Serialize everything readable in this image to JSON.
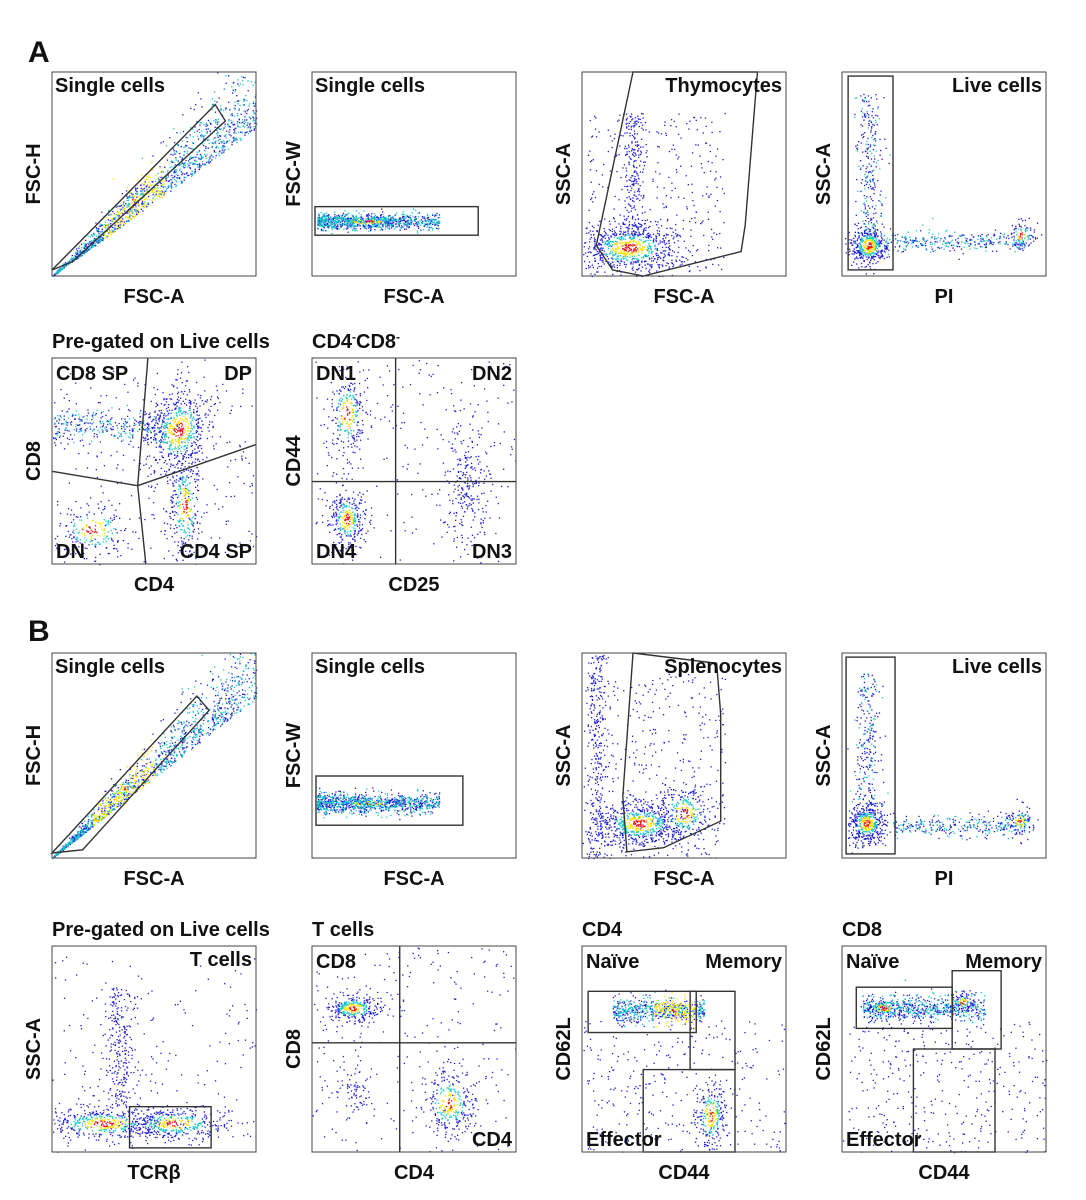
{
  "figure": {
    "panels": [
      {
        "letter": "A",
        "plots": [
          {
            "title": "",
            "gate_label": "Single cells",
            "xlabel": "FSC-A",
            "ylabel": "FSC-H",
            "quadrants": [],
            "cloud": "diag_a"
          },
          {
            "title": "",
            "gate_label": "Single cells",
            "xlabel": "FSC-A",
            "ylabel": "FSC-W",
            "quadrants": [],
            "cloud": "band_a"
          },
          {
            "title": "",
            "gate_label": "Thymocytes",
            "xlabel": "FSC-A",
            "ylabel": "SSC-A",
            "quadrants": [],
            "cloud": "scatter_thymo"
          },
          {
            "title": "",
            "gate_label": "Live cells",
            "xlabel": "PI",
            "ylabel": "SSC-A",
            "quadrants": [],
            "cloud": "live_a"
          },
          {
            "title": "Pre-gated on Live cells",
            "gate_label": "",
            "xlabel": "CD4",
            "ylabel": "CD8",
            "quadrants": [
              "CD8 SP",
              "DP",
              "DN",
              "CD4 SP"
            ],
            "cloud": "cd4cd8_thymo"
          },
          {
            "title": "CD4",
            "title_sup1": "-",
            "title_mid": "CD8",
            "title_sup2": "-",
            "gate_label": "",
            "xlabel": "CD25",
            "ylabel": "CD44",
            "quadrants": [
              "DN1",
              "DN2",
              "DN4",
              "DN3"
            ],
            "cloud": "dn"
          }
        ]
      },
      {
        "letter": "B",
        "plots": [
          {
            "title": "",
            "gate_label": "Single cells",
            "xlabel": "FSC-A",
            "ylabel": "FSC-H",
            "quadrants": [],
            "cloud": "diag_b"
          },
          {
            "title": "",
            "gate_label": "Single cells",
            "xlabel": "FSC-A",
            "ylabel": "FSC-W",
            "quadrants": [],
            "cloud": "band_b"
          },
          {
            "title": "",
            "gate_label": "Splenocytes",
            "xlabel": "FSC-A",
            "ylabel": "SSC-A",
            "quadrants": [],
            "cloud": "scatter_spleno"
          },
          {
            "title": "",
            "gate_label": "Live cells",
            "xlabel": "PI",
            "ylabel": "SSC-A",
            "quadrants": [],
            "cloud": "live_b"
          },
          {
            "title": "Pre-gated on Live cells",
            "gate_label": "T cells",
            "xlabel": "TCRβ",
            "ylabel": "SSC-A",
            "quadrants": [],
            "cloud": "tcr"
          },
          {
            "title": "T cells",
            "gate_label": "",
            "xlabel": "CD4",
            "ylabel": "CD8",
            "quadrants": [
              "CD8",
              "CD4"
            ],
            "cloud": "tcell"
          },
          {
            "title": "CD4",
            "gate_label": "",
            "xlabel": "CD44",
            "ylabel": "CD62L",
            "quadrants": [
              "Naïve",
              "Memory",
              "Effector"
            ],
            "cloud": "cd4mem"
          },
          {
            "title": "CD8",
            "gate_label": "",
            "xlabel": "CD44",
            "ylabel": "CD62L",
            "quadrants": [
              "Naïve",
              "Memory",
              "Effector"
            ],
            "cloud": "cd8mem"
          }
        ]
      }
    ]
  },
  "chart_data": {
    "type": "scatter",
    "description": "Flow cytometry gating density plots",
    "colors": {
      "low": "#1b1bd8",
      "mid": "#14c8c8",
      "high": "#ffe000",
      "peak": "#e8141c",
      "gate": "#333333"
    }
  }
}
